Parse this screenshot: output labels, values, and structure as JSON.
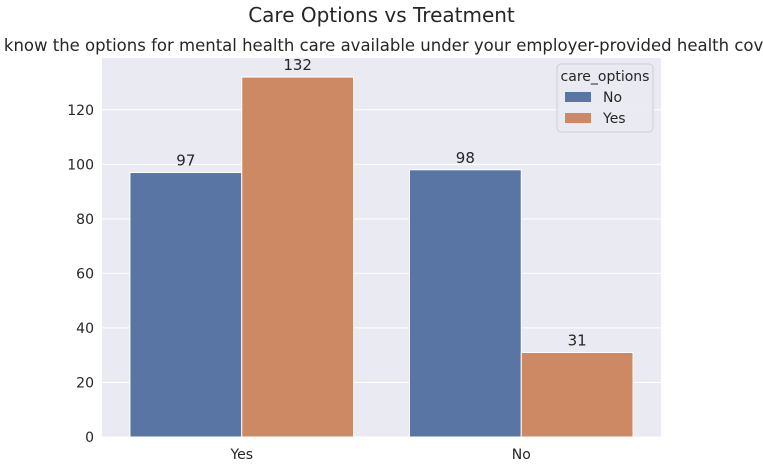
{
  "suptitle": "Care Options vs Treatment",
  "chart_data": {
    "type": "bar",
    "title": "Do you know the options for mental health care available under your employer-provided health coverage?",
    "xlabel": "",
    "ylabel": "",
    "categories": [
      "Yes",
      "No"
    ],
    "series": [
      {
        "name": "No",
        "color": "#5875a4",
        "values": [
          97,
          98
        ]
      },
      {
        "name": "Yes",
        "color": "#cc8963",
        "values": [
          132,
          31
        ]
      }
    ],
    "ylim": [
      0,
      139
    ],
    "yticks": [
      0,
      20,
      40,
      60,
      80,
      100,
      120
    ],
    "grid": true,
    "legend": {
      "title": "care_options",
      "position": "top-right"
    },
    "background_color": "#eaeaf2"
  }
}
